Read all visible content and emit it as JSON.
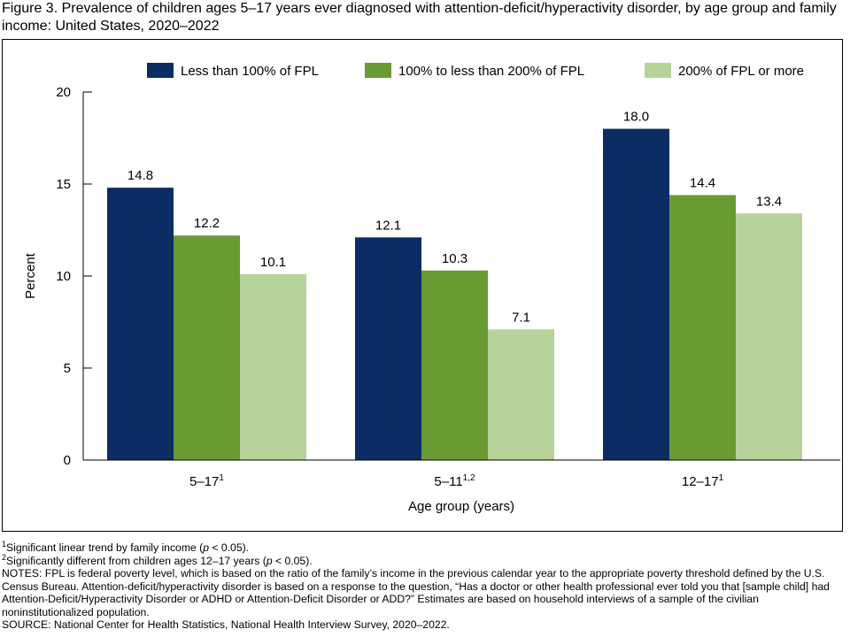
{
  "title": "Figure 3. Prevalence of children ages 5–17 years ever diagnosed with attention-deficit/hyperactivity disorder, by age group and family income: United States, 2020–2022",
  "chart_data": {
    "type": "bar",
    "categories": [
      "5–17",
      "5–11",
      "12–17"
    ],
    "category_superscripts": [
      "1",
      "1,2",
      "1"
    ],
    "series": [
      {
        "name": "Less than 100% of FPL",
        "color": "#0c2d63",
        "values": [
          14.8,
          12.1,
          18.0
        ]
      },
      {
        "name": "100% to less than 200% of FPL",
        "color": "#6a9a32",
        "values": [
          12.2,
          10.3,
          14.4
        ]
      },
      {
        "name": "200% of FPL or more",
        "color": "#b7d39a",
        "values": [
          10.1,
          7.1,
          13.4
        ]
      }
    ],
    "value_labels": [
      [
        "14.8",
        "12.1",
        "18.0"
      ],
      [
        "12.2",
        "10.3",
        "14.4"
      ],
      [
        "10.1",
        "7.1",
        "13.4"
      ]
    ],
    "xlabel": "Age group (years)",
    "ylabel": "Percent",
    "ylim": [
      0,
      20
    ],
    "yticks": [
      "0",
      "5",
      "10",
      "15",
      "20"
    ],
    "legend_position": "top",
    "grid": false
  },
  "footnotes": {
    "fn1_mark": "1",
    "fn1_text": "Significant linear trend by family income (",
    "fn1_p": "p",
    "fn1_end": " < 0.05).",
    "fn2_mark": "2",
    "fn2_text": "Significantly different from children ages 12–17 years (",
    "fn2_p": "p",
    "fn2_end": " < 0.05).",
    "notes": "NOTES: FPL is federal poverty level, which is based on the ratio of the family’s income in the previous calendar year to the appropriate poverty threshold defined by the U.S. Census Bureau. Attention-deficit/hyperactivity disorder is based on a response to the question, “Has a doctor or other health professional ever told you that [sample child] had Attention-Deficit/Hyperactivity Disorder or ADHD or Attention-Deficit Disorder or ADD?” Estimates are based on household interviews of a sample of the civilian noninstitutionalized population.",
    "source": "SOURCE: National Center for Health Statistics, National Health Interview Survey, 2020–2022."
  }
}
